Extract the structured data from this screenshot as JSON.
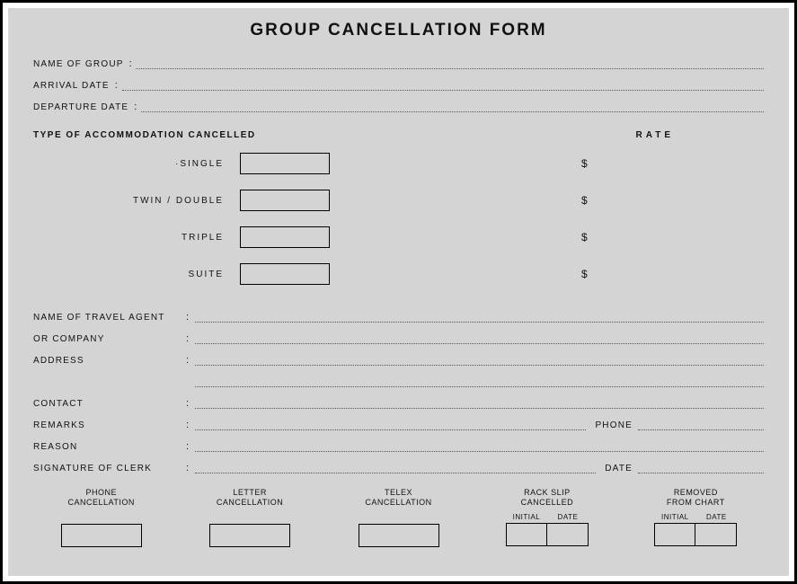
{
  "title": "GROUP CANCELLATION FORM",
  "top_fields": {
    "name_of_group": "NAME OF GROUP",
    "arrival_date": "ARRIVAL DATE",
    "departure_date": "DEPARTURE DATE"
  },
  "accommodation": {
    "section_label": "TYPE OF ACCOMMODATION CANCELLED",
    "rate_label": "RATE",
    "currency": "$",
    "rows": {
      "single": "·SINGLE",
      "twin_double": "TWIN / DOUBLE",
      "triple": "TRIPLE",
      "suite": "SUITE"
    }
  },
  "bottom_fields": {
    "travel_agent": "NAME OF TRAVEL AGENT",
    "or_company": "OR COMPANY",
    "address": "ADDRESS",
    "contact": "CONTACT",
    "remarks": "REMARKS",
    "phone": "PHONE",
    "reason": "REASON",
    "signature": "SIGNATURE OF CLERK",
    "date": "DATE"
  },
  "footer": {
    "phone_cancel": "PHONE\nCANCELLATION",
    "letter_cancel": "LETTER\nCANCELLATION",
    "telex_cancel": "TELEX\nCANCELLATION",
    "rack_slip": "RACK SLIP\nCANCELLED",
    "removed": "REMOVED\nFROM CHART",
    "initial": "INITIAL",
    "date": "DATE"
  },
  "style": {
    "page_bg": "#d4d4d4",
    "border_color": "#000000",
    "dot_color": "#555555",
    "text_color": "#111111",
    "title_fontsize": 19,
    "label_fontsize": 10,
    "small_fontsize": 9,
    "box_border_width": 1.5
  }
}
